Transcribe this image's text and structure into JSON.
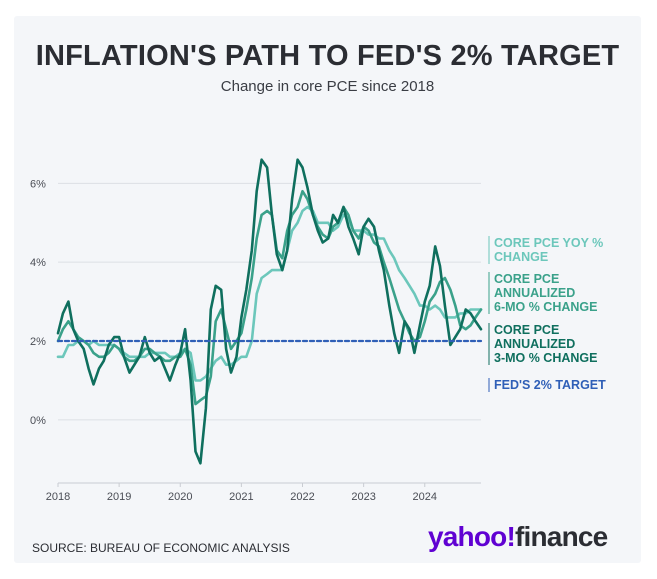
{
  "title": "INFLATION'S PATH TO FED'S 2% TARGET",
  "subtitle": "Change in core PCE since 2018",
  "source": "SOURCE: BUREAU OF ECONOMIC ANALYSIS",
  "logo": {
    "part1": "yahoo!",
    "part2": "finance"
  },
  "colors": {
    "yoy": "#6cc7bb",
    "six_month": "#3aa18a",
    "three_month": "#0f6f5e",
    "target": "#2f5fb7",
    "grid": "#dcdfe4",
    "axis_text": "#4a4d55"
  },
  "chart_data": {
    "type": "line",
    "title": "INFLATION'S PATH TO FED'S 2% TARGET",
    "subtitle": "Change in core PCE since 2018",
    "xlabel": "",
    "ylabel": "",
    "x_range": [
      2018.0,
      2024.92
    ],
    "ylim": [
      -1.6,
      7.2
    ],
    "y_ticks": [
      0,
      2,
      4,
      6
    ],
    "y_tick_labels": [
      "0%",
      "2%",
      "4%",
      "6%"
    ],
    "x_ticks": [
      2018,
      2019,
      2020,
      2021,
      2022,
      2023,
      2024
    ],
    "x_tick_labels": [
      "2018",
      "2019",
      "2020",
      "2021",
      "2022",
      "2023",
      "2024"
    ],
    "grid": true,
    "legend_position": "right, end of lines",
    "series": [
      {
        "name": "CORE PCE YOY % CHANGE",
        "label_lines": [
          "CORE PCE YOY %",
          "CHANGE"
        ],
        "color": "#6cc7bb",
        "points": [
          [
            2018.0,
            1.6
          ],
          [
            2018.08,
            1.6
          ],
          [
            2018.17,
            1.9
          ],
          [
            2018.25,
            1.9
          ],
          [
            2018.33,
            2.0
          ],
          [
            2018.42,
            2.0
          ],
          [
            2018.5,
            1.9
          ],
          [
            2018.58,
            2.0
          ],
          [
            2018.67,
            1.9
          ],
          [
            2018.75,
            1.9
          ],
          [
            2018.83,
            1.9
          ],
          [
            2018.92,
            1.9
          ],
          [
            2019.0,
            1.8
          ],
          [
            2019.08,
            1.7
          ],
          [
            2019.17,
            1.6
          ],
          [
            2019.25,
            1.6
          ],
          [
            2019.33,
            1.6
          ],
          [
            2019.42,
            1.6
          ],
          [
            2019.5,
            1.7
          ],
          [
            2019.58,
            1.7
          ],
          [
            2019.67,
            1.7
          ],
          [
            2019.75,
            1.7
          ],
          [
            2019.83,
            1.6
          ],
          [
            2019.92,
            1.6
          ],
          [
            2020.0,
            1.7
          ],
          [
            2020.08,
            1.8
          ],
          [
            2020.17,
            1.7
          ],
          [
            2020.25,
            1.0
          ],
          [
            2020.33,
            1.0
          ],
          [
            2020.42,
            1.1
          ],
          [
            2020.5,
            1.3
          ],
          [
            2020.58,
            1.5
          ],
          [
            2020.67,
            1.6
          ],
          [
            2020.75,
            1.4
          ],
          [
            2020.83,
            1.4
          ],
          [
            2020.92,
            1.5
          ],
          [
            2021.0,
            1.6
          ],
          [
            2021.08,
            1.6
          ],
          [
            2021.17,
            2.0
          ],
          [
            2021.25,
            3.2
          ],
          [
            2021.33,
            3.6
          ],
          [
            2021.42,
            3.7
          ],
          [
            2021.5,
            3.8
          ],
          [
            2021.58,
            3.8
          ],
          [
            2021.67,
            3.8
          ],
          [
            2021.75,
            4.3
          ],
          [
            2021.83,
            4.8
          ],
          [
            2021.92,
            5.0
          ],
          [
            2022.0,
            5.3
          ],
          [
            2022.08,
            5.4
          ],
          [
            2022.17,
            5.3
          ],
          [
            2022.25,
            5.0
          ],
          [
            2022.33,
            5.0
          ],
          [
            2022.42,
            5.0
          ],
          [
            2022.5,
            4.8
          ],
          [
            2022.58,
            4.9
          ],
          [
            2022.67,
            5.2
          ],
          [
            2022.75,
            5.1
          ],
          [
            2022.83,
            4.8
          ],
          [
            2022.92,
            4.8
          ],
          [
            2023.0,
            4.8
          ],
          [
            2023.08,
            4.7
          ],
          [
            2023.17,
            4.7
          ],
          [
            2023.25,
            4.6
          ],
          [
            2023.33,
            4.6
          ],
          [
            2023.42,
            4.3
          ],
          [
            2023.5,
            4.1
          ],
          [
            2023.58,
            3.8
          ],
          [
            2023.67,
            3.6
          ],
          [
            2023.75,
            3.4
          ],
          [
            2023.83,
            3.2
          ],
          [
            2023.92,
            2.9
          ],
          [
            2024.0,
            2.9
          ],
          [
            2024.08,
            2.8
          ],
          [
            2024.17,
            2.9
          ],
          [
            2024.25,
            2.8
          ],
          [
            2024.33,
            2.6
          ],
          [
            2024.42,
            2.6
          ],
          [
            2024.5,
            2.6
          ],
          [
            2024.58,
            2.7
          ],
          [
            2024.67,
            2.7
          ],
          [
            2024.75,
            2.8
          ],
          [
            2024.83,
            2.8
          ],
          [
            2024.92,
            2.8
          ]
        ]
      },
      {
        "name": "CORE PCE ANNUALIZED 6-MO % CHANGE",
        "label_lines": [
          "CORE PCE",
          "ANNUALIZED",
          "6-MO % CHANGE"
        ],
        "color": "#3aa18a",
        "points": [
          [
            2018.0,
            2.0
          ],
          [
            2018.08,
            2.3
          ],
          [
            2018.17,
            2.5
          ],
          [
            2018.25,
            2.3
          ],
          [
            2018.33,
            2.1
          ],
          [
            2018.42,
            2.0
          ],
          [
            2018.5,
            1.9
          ],
          [
            2018.58,
            1.7
          ],
          [
            2018.67,
            1.6
          ],
          [
            2018.75,
            1.6
          ],
          [
            2018.83,
            1.7
          ],
          [
            2018.92,
            1.9
          ],
          [
            2019.0,
            1.8
          ],
          [
            2019.08,
            1.6
          ],
          [
            2019.17,
            1.5
          ],
          [
            2019.25,
            1.5
          ],
          [
            2019.33,
            1.6
          ],
          [
            2019.42,
            1.8
          ],
          [
            2019.5,
            1.8
          ],
          [
            2019.58,
            1.7
          ],
          [
            2019.67,
            1.6
          ],
          [
            2019.75,
            1.5
          ],
          [
            2019.83,
            1.5
          ],
          [
            2019.92,
            1.6
          ],
          [
            2020.0,
            1.6
          ],
          [
            2020.08,
            1.8
          ],
          [
            2020.17,
            1.4
          ],
          [
            2020.25,
            0.4
          ],
          [
            2020.33,
            0.5
          ],
          [
            2020.42,
            0.6
          ],
          [
            2020.5,
            1.1
          ],
          [
            2020.58,
            2.5
          ],
          [
            2020.67,
            2.8
          ],
          [
            2020.75,
            2.3
          ],
          [
            2020.83,
            1.8
          ],
          [
            2020.92,
            2.0
          ],
          [
            2021.0,
            2.2
          ],
          [
            2021.08,
            2.8
          ],
          [
            2021.17,
            3.6
          ],
          [
            2021.25,
            4.6
          ],
          [
            2021.33,
            5.2
          ],
          [
            2021.42,
            5.3
          ],
          [
            2021.5,
            5.2
          ],
          [
            2021.58,
            4.3
          ],
          [
            2021.67,
            4.1
          ],
          [
            2021.75,
            4.8
          ],
          [
            2021.83,
            5.2
          ],
          [
            2021.92,
            5.4
          ],
          [
            2022.0,
            5.8
          ],
          [
            2022.08,
            5.6
          ],
          [
            2022.17,
            5.2
          ],
          [
            2022.25,
            4.9
          ],
          [
            2022.33,
            4.7
          ],
          [
            2022.42,
            4.6
          ],
          [
            2022.5,
            4.9
          ],
          [
            2022.58,
            5.0
          ],
          [
            2022.67,
            5.4
          ],
          [
            2022.75,
            5.2
          ],
          [
            2022.83,
            4.8
          ],
          [
            2022.92,
            4.6
          ],
          [
            2023.0,
            4.9
          ],
          [
            2023.08,
            4.8
          ],
          [
            2023.17,
            4.5
          ],
          [
            2023.25,
            4.4
          ],
          [
            2023.33,
            4.0
          ],
          [
            2023.42,
            3.6
          ],
          [
            2023.5,
            3.2
          ],
          [
            2023.58,
            2.8
          ],
          [
            2023.67,
            2.5
          ],
          [
            2023.75,
            2.2
          ],
          [
            2023.83,
            2.0
          ],
          [
            2023.92,
            2.1
          ],
          [
            2024.0,
            2.5
          ],
          [
            2024.08,
            3.0
          ],
          [
            2024.17,
            3.2
          ],
          [
            2024.25,
            3.5
          ],
          [
            2024.33,
            3.6
          ],
          [
            2024.42,
            3.3
          ],
          [
            2024.5,
            2.9
          ],
          [
            2024.58,
            2.4
          ],
          [
            2024.67,
            2.3
          ],
          [
            2024.75,
            2.4
          ],
          [
            2024.83,
            2.6
          ],
          [
            2024.92,
            2.8
          ]
        ]
      },
      {
        "name": "CORE PCE ANNUALIZED 3-MO % CHANGE",
        "label_lines": [
          "CORE PCE",
          "ANNUALIZED",
          "3-MO % CHANGE"
        ],
        "color": "#0f6f5e",
        "points": [
          [
            2018.0,
            2.2
          ],
          [
            2018.08,
            2.7
          ],
          [
            2018.17,
            3.0
          ],
          [
            2018.25,
            2.3
          ],
          [
            2018.33,
            2.0
          ],
          [
            2018.42,
            1.8
          ],
          [
            2018.5,
            1.3
          ],
          [
            2018.58,
            0.9
          ],
          [
            2018.67,
            1.3
          ],
          [
            2018.75,
            1.5
          ],
          [
            2018.83,
            1.9
          ],
          [
            2018.92,
            2.1
          ],
          [
            2019.0,
            2.1
          ],
          [
            2019.08,
            1.6
          ],
          [
            2019.17,
            1.2
          ],
          [
            2019.25,
            1.4
          ],
          [
            2019.33,
            1.6
          ],
          [
            2019.42,
            2.1
          ],
          [
            2019.5,
            1.7
          ],
          [
            2019.58,
            1.5
          ],
          [
            2019.67,
            1.6
          ],
          [
            2019.75,
            1.3
          ],
          [
            2019.83,
            1.0
          ],
          [
            2019.92,
            1.4
          ],
          [
            2020.0,
            1.7
          ],
          [
            2020.08,
            2.3
          ],
          [
            2020.17,
            1.0
          ],
          [
            2020.25,
            -0.8
          ],
          [
            2020.33,
            -1.1
          ],
          [
            2020.42,
            0.3
          ],
          [
            2020.5,
            2.8
          ],
          [
            2020.58,
            3.4
          ],
          [
            2020.67,
            3.3
          ],
          [
            2020.75,
            1.8
          ],
          [
            2020.83,
            1.2
          ],
          [
            2020.92,
            1.6
          ],
          [
            2021.0,
            2.6
          ],
          [
            2021.08,
            3.3
          ],
          [
            2021.17,
            4.3
          ],
          [
            2021.25,
            5.8
          ],
          [
            2021.33,
            6.6
          ],
          [
            2021.42,
            6.4
          ],
          [
            2021.5,
            5.2
          ],
          [
            2021.58,
            4.2
          ],
          [
            2021.67,
            3.8
          ],
          [
            2021.75,
            4.3
          ],
          [
            2021.83,
            5.6
          ],
          [
            2021.92,
            6.6
          ],
          [
            2022.0,
            6.4
          ],
          [
            2022.08,
            5.9
          ],
          [
            2022.17,
            5.2
          ],
          [
            2022.25,
            4.8
          ],
          [
            2022.33,
            4.5
          ],
          [
            2022.42,
            4.6
          ],
          [
            2022.5,
            5.2
          ],
          [
            2022.58,
            5.0
          ],
          [
            2022.67,
            5.4
          ],
          [
            2022.75,
            4.9
          ],
          [
            2022.83,
            4.6
          ],
          [
            2022.92,
            4.2
          ],
          [
            2023.0,
            4.9
          ],
          [
            2023.08,
            5.1
          ],
          [
            2023.17,
            4.9
          ],
          [
            2023.25,
            4.3
          ],
          [
            2023.33,
            3.8
          ],
          [
            2023.42,
            2.9
          ],
          [
            2023.5,
            2.2
          ],
          [
            2023.58,
            1.7
          ],
          [
            2023.67,
            2.5
          ],
          [
            2023.75,
            2.3
          ],
          [
            2023.83,
            1.7
          ],
          [
            2023.92,
            2.4
          ],
          [
            2024.0,
            3.0
          ],
          [
            2024.08,
            3.4
          ],
          [
            2024.17,
            4.4
          ],
          [
            2024.25,
            3.9
          ],
          [
            2024.33,
            2.9
          ],
          [
            2024.42,
            1.9
          ],
          [
            2024.5,
            2.1
          ],
          [
            2024.58,
            2.3
          ],
          [
            2024.67,
            2.8
          ],
          [
            2024.75,
            2.7
          ],
          [
            2024.83,
            2.5
          ],
          [
            2024.92,
            2.3
          ]
        ]
      },
      {
        "name": "FED'S 2% TARGET",
        "label_lines": [
          "FED'S 2% TARGET"
        ],
        "color": "#2f5fb7",
        "style": "dashed",
        "points": [
          [
            2018.0,
            2.0
          ],
          [
            2024.92,
            2.0
          ]
        ]
      }
    ]
  }
}
